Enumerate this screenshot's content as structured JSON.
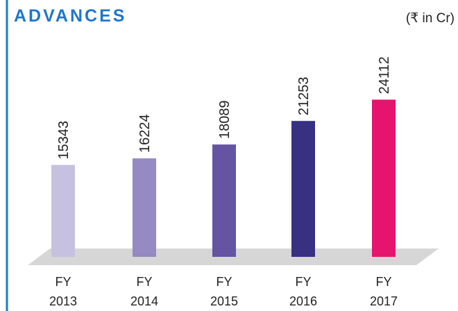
{
  "chart_data": {
    "type": "bar",
    "title": "ADVANCES",
    "unit_note": "(₹ in Cr)",
    "categories": [
      "FY 2013",
      "FY 2014",
      "FY 2015",
      "FY 2016",
      "FY 2017"
    ],
    "values": [
      15343,
      16224,
      18089,
      21253,
      24112
    ],
    "colors": [
      "#c6c0e1",
      "#958ac2",
      "#6554a1",
      "#383081",
      "#e5156f"
    ],
    "ylim": [
      3000,
      25000
    ]
  }
}
